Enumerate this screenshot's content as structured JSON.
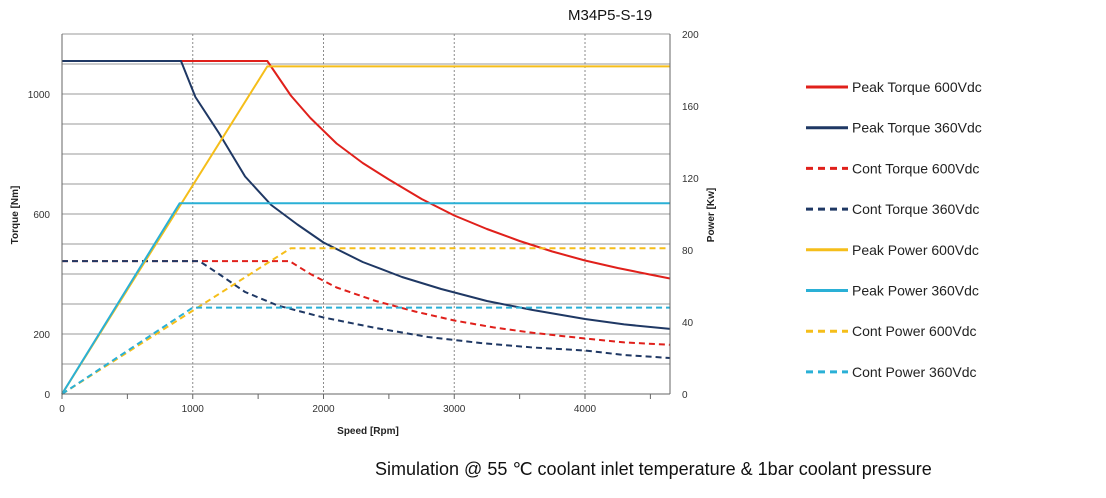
{
  "chart_data": {
    "type": "line",
    "title": "M34P5-S-19",
    "caption": "Simulation @ 55 ℃ coolant inlet temperature & 1bar coolant pressure",
    "xlabel": "Speed [Rpm]",
    "ylabel_left": "Torque [Nm]",
    "ylabel_right": "Power [Kw]",
    "xlim": [
      0,
      4650
    ],
    "ylim_left": [
      0,
      1200
    ],
    "ylim_right": [
      0,
      200
    ],
    "x_ticks": [
      "0",
      "1000",
      "2000",
      "3000",
      "4000"
    ],
    "y_left_ticks": [
      "0",
      "200",
      "600",
      "1000"
    ],
    "y_right_ticks": [
      "0",
      "40",
      "80",
      "120",
      "160",
      "200"
    ],
    "grid": true,
    "legend_position": "right",
    "series": [
      {
        "name": "Peak Torque 600Vdc",
        "axis": "left",
        "color": "#e0201b",
        "dash": "solid",
        "points": [
          [
            0,
            1110
          ],
          [
            1570,
            1110
          ],
          [
            1750,
            995
          ],
          [
            1900,
            920
          ],
          [
            2100,
            835
          ],
          [
            2300,
            770
          ],
          [
            2500,
            715
          ],
          [
            2750,
            650
          ],
          [
            3000,
            595
          ],
          [
            3250,
            550
          ],
          [
            3500,
            510
          ],
          [
            3750,
            475
          ],
          [
            4000,
            445
          ],
          [
            4250,
            420
          ],
          [
            4500,
            398
          ],
          [
            4650,
            385
          ]
        ]
      },
      {
        "name": "Peak Torque 360Vdc",
        "axis": "left",
        "color": "#1f3864",
        "dash": "solid",
        "points": [
          [
            0,
            1110
          ],
          [
            910,
            1110
          ],
          [
            1020,
            990
          ],
          [
            1200,
            870
          ],
          [
            1400,
            725
          ],
          [
            1600,
            630
          ],
          [
            1800,
            565
          ],
          [
            2000,
            505
          ],
          [
            2300,
            440
          ],
          [
            2600,
            390
          ],
          [
            2900,
            350
          ],
          [
            3250,
            310
          ],
          [
            3600,
            280
          ],
          [
            4000,
            250
          ],
          [
            4300,
            232
          ],
          [
            4650,
            217
          ]
        ]
      },
      {
        "name": "Cont Torque 600Vdc",
        "axis": "left",
        "color": "#e0201b",
        "dash": "dashed",
        "points": [
          [
            0,
            443
          ],
          [
            1740,
            443
          ],
          [
            1900,
            400
          ],
          [
            2100,
            355
          ],
          [
            2400,
            310
          ],
          [
            2700,
            275
          ],
          [
            3000,
            245
          ],
          [
            3300,
            222
          ],
          [
            3600,
            204
          ],
          [
            4000,
            185
          ],
          [
            4300,
            172
          ],
          [
            4650,
            164
          ]
        ]
      },
      {
        "name": "Cont Torque 360Vdc",
        "axis": "left",
        "color": "#1f3864",
        "dash": "dashed",
        "points": [
          [
            0,
            443
          ],
          [
            1050,
            443
          ],
          [
            1200,
            400
          ],
          [
            1400,
            340
          ],
          [
            1650,
            295
          ],
          [
            2000,
            255
          ],
          [
            2400,
            220
          ],
          [
            2800,
            190
          ],
          [
            3200,
            170
          ],
          [
            3600,
            155
          ],
          [
            4000,
            145
          ],
          [
            4300,
            130
          ],
          [
            4650,
            120
          ]
        ]
      },
      {
        "name": "Peak Power 600Vdc",
        "axis": "right",
        "color": "#f5be1a",
        "dash": "solid",
        "points": [
          [
            0,
            0
          ],
          [
            1570,
            182
          ],
          [
            4650,
            182
          ]
        ]
      },
      {
        "name": "Peak Power 360Vdc",
        "axis": "right",
        "color": "#2ab0d6",
        "dash": "solid",
        "points": [
          [
            0,
            0
          ],
          [
            900,
            106
          ],
          [
            4650,
            106
          ]
        ]
      },
      {
        "name": "Cont Power 600Vdc",
        "axis": "right",
        "color": "#f5be1a",
        "dash": "dashed",
        "points": [
          [
            0,
            0
          ],
          [
            1750,
            81
          ],
          [
            4650,
            81
          ]
        ]
      },
      {
        "name": "Cont Power 360Vdc",
        "axis": "right",
        "color": "#2ab0d6",
        "dash": "dashed",
        "points": [
          [
            0,
            0
          ],
          [
            1000,
            48
          ],
          [
            4650,
            48
          ]
        ]
      }
    ]
  }
}
